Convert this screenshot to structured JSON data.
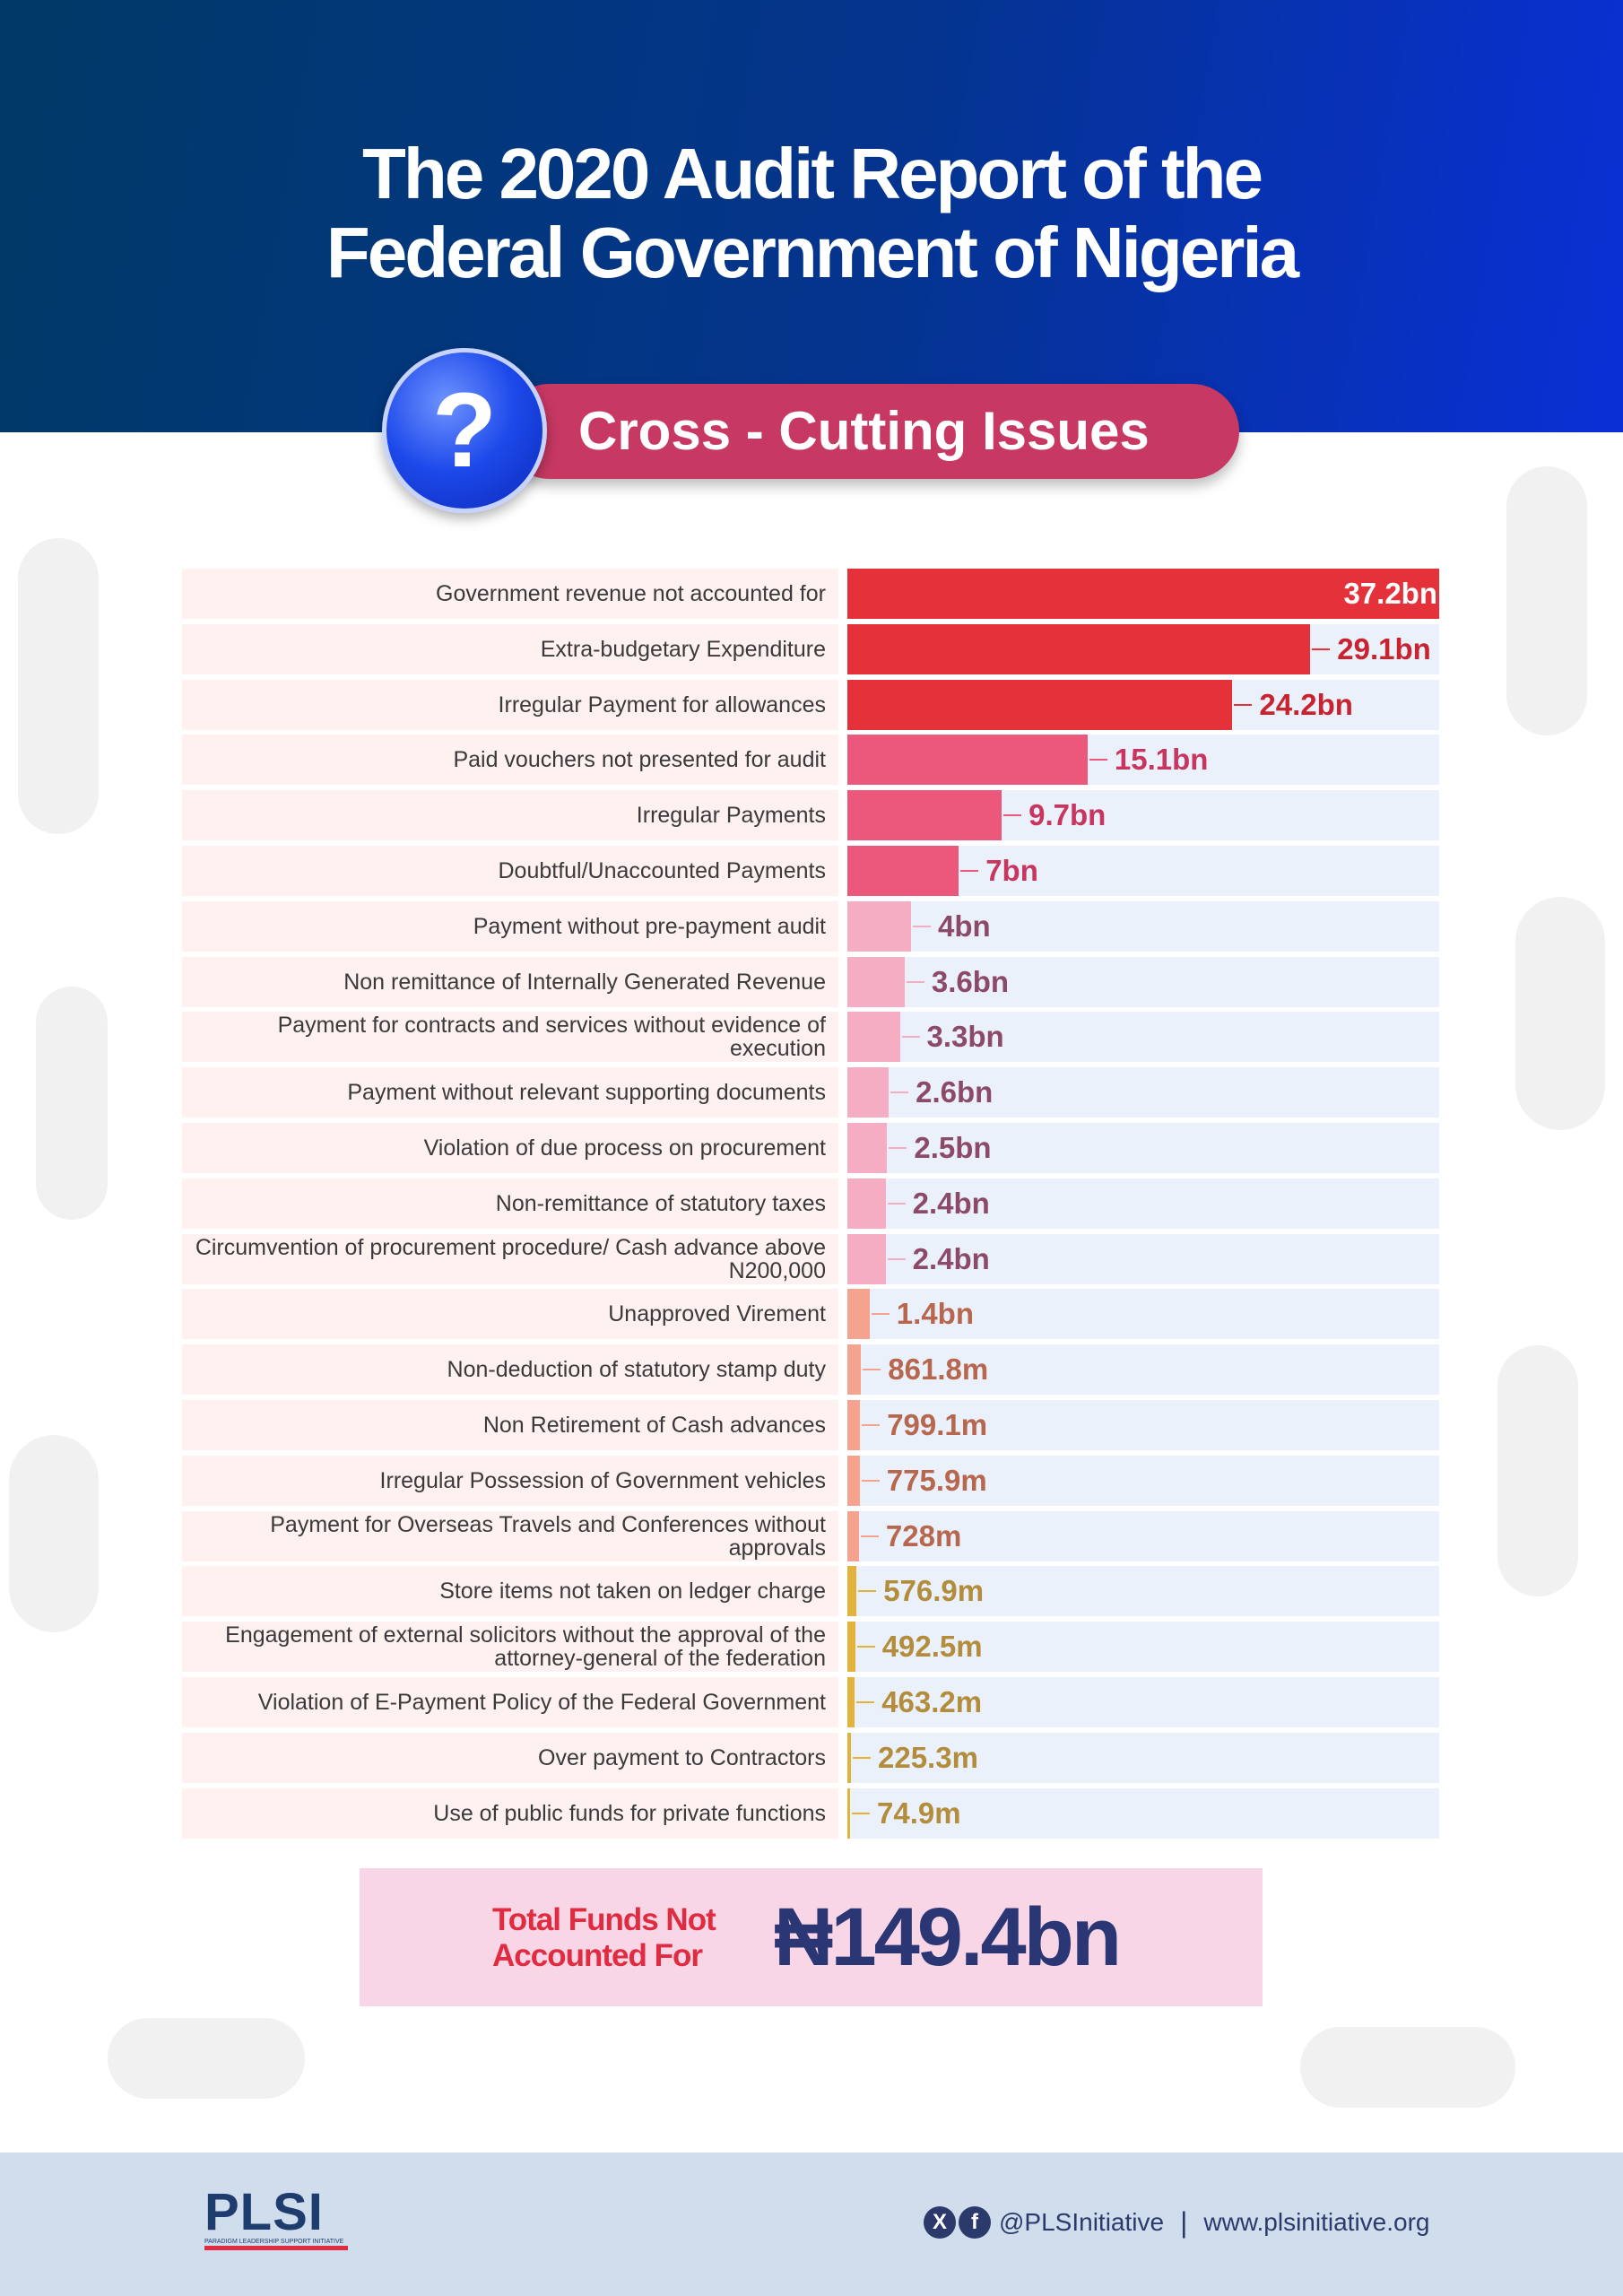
{
  "header": {
    "title_line1": "The 2020 Audit Report of the",
    "title_line2": "Federal Government of Nigeria",
    "banner_text": "Cross - Cutting Issues",
    "banner_icon": "question-mark-icon"
  },
  "chart_data": {
    "type": "bar",
    "orientation": "horizontal",
    "unit": "Naira",
    "xlim": [
      0,
      37.2
    ],
    "categories": [
      "Government revenue not accounted for",
      "Extra-budgetary Expenditure",
      "Irregular Payment for allowances",
      "Paid vouchers not presented for audit",
      "Irregular Payments",
      "Doubtful/Unaccounted Payments",
      "Payment without pre-payment audit",
      "Non remittance of Internally Generated Revenue",
      "Payment for contracts and services without evidence of execution",
      "Payment without relevant supporting documents",
      "Violation of due process on procurement",
      "Non-remittance of statutory taxes",
      "Circumvention of procurement procedure/ Cash advance above N200,000",
      "Unapproved Virement",
      "Non-deduction of statutory stamp duty",
      "Non Retirement of Cash advances",
      "Irregular Possession of Government vehicles",
      "Payment for Overseas Travels and Conferences without approvals",
      "Store items not taken on ledger charge",
      "Engagement of external solicitors without the approval of the attorney-general of the federation",
      "Violation of E-Payment Policy of the Federal Government",
      "Over payment to Contractors",
      "Use of public funds for private functions"
    ],
    "values_bn": [
      37.2,
      29.1,
      24.2,
      15.1,
      9.7,
      7,
      4,
      3.6,
      3.3,
      2.6,
      2.5,
      2.4,
      2.4,
      1.4,
      0.8618,
      0.7991,
      0.7759,
      0.728,
      0.5769,
      0.4925,
      0.4632,
      0.2253,
      0.0749
    ],
    "value_labels": [
      "37.2bn",
      "29.1bn",
      "24.2bn",
      "15.1bn",
      "9.7bn",
      "7bn",
      "4bn",
      "3.6bn",
      "3.3bn",
      "2.6bn",
      "2.5bn",
      "2.4bn",
      "2.4bn",
      "1.4bn",
      "861.8m",
      "799.1m",
      "775.9m",
      "728m",
      "576.9m",
      "492.5m",
      "463.2m",
      "225.3m",
      "74.9m"
    ],
    "colors": {
      "tier1": "#e5313a",
      "tier2": "#ec577c",
      "tier3": "#f4adc3",
      "tier4": "#f5a28f",
      "tier5": "#e2b23a"
    },
    "label_colors": {
      "tier1": "#c8232f",
      "tier2": "#c8355e",
      "tier3": "#8c4a68",
      "tier4": "#b8674f",
      "tier5": "#b38c3c"
    }
  },
  "total": {
    "label_line1": "Total Funds Not",
    "label_line2": "Accounted For",
    "value": "₦149.4bn"
  },
  "footer": {
    "logo_text": "PLSI",
    "logo_subtext": "PARADIGM LEADERSHIP SUPPORT INITIATIVE",
    "x_icon": "x-twitter-icon",
    "facebook_icon": "facebook-icon",
    "handle": "@PLSInitiative",
    "separator": "|",
    "website": "www.plsinitiative.org"
  }
}
